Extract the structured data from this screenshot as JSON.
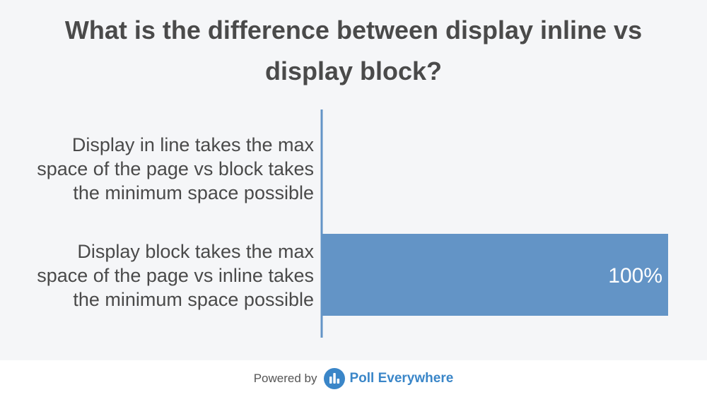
{
  "chart_data": {
    "type": "bar",
    "orientation": "horizontal",
    "title": "What is the difference between display inline vs display block?",
    "categories": [
      "Display in line takes the max space of the page vs block takes the minimum space possible",
      "Display block takes the max space of the page vs inline takes the minimum space possible"
    ],
    "category_lines": [
      [
        "Display in line takes the max",
        "space of the page vs block takes",
        "the minimum space possible"
      ],
      [
        "Display block takes the max",
        "space of the page vs inline takes",
        "the minimum space possible"
      ]
    ],
    "values": [
      0,
      100
    ],
    "data_labels": [
      "",
      "100%"
    ],
    "xlim": [
      0,
      100
    ],
    "grid": false,
    "colors": {
      "bar": "#6394c6",
      "axis": "#6394c6",
      "label_text": "#4a4a4a",
      "data_label_text": "#ffffff"
    }
  },
  "footer": {
    "powered_by": "Powered by",
    "brand": "Poll Everywhere",
    "brand_icon": "poll-everywhere-logo-icon",
    "brand_color": "#3a86c8"
  }
}
